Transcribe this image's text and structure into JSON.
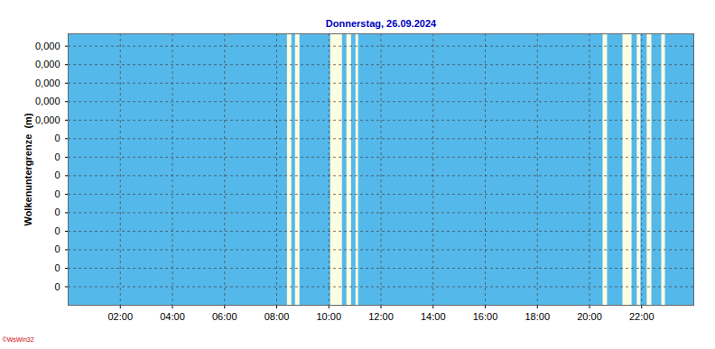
{
  "chart_data": {
    "type": "area",
    "title": "Donnerstag, 26.09.2024",
    "ylabel": "Wolkenuntergrenze  (m)",
    "annotations": [
      "©WsWin32"
    ],
    "x": [
      0,
      8.41,
      8.58,
      8.72,
      8.89,
      10.07,
      10.52,
      10.69,
      10.87,
      11.04,
      11.14,
      20.52,
      20.69,
      21.28,
      21.63,
      21.83,
      21.97,
      22.21,
      22.39,
      22.77,
      22.91,
      24
    ],
    "values": [
      0,
      null,
      0,
      null,
      0,
      null,
      0,
      null,
      0,
      null,
      0,
      null,
      0,
      null,
      0,
      null,
      0,
      null,
      0,
      null,
      0,
      null
    ],
    "color": "#55b8ea",
    "xlim": [
      0,
      24
    ],
    "xticks": [
      {
        "value": 2,
        "label": "02:00"
      },
      {
        "value": 4,
        "label": "04:00"
      },
      {
        "value": 6,
        "label": "06:00"
      },
      {
        "value": 8,
        "label": "08:00"
      },
      {
        "value": 10,
        "label": "10:00"
      },
      {
        "value": 12,
        "label": "12:00"
      },
      {
        "value": 14,
        "label": "14:00"
      },
      {
        "value": 16,
        "label": "16:00"
      },
      {
        "value": 18,
        "label": "18:00"
      },
      {
        "value": 20,
        "label": "20:00"
      },
      {
        "value": 22,
        "label": "22:00"
      }
    ],
    "ylim": [
      0,
      0.00044
    ],
    "yticks": [
      {
        "value": 3e-05,
        "label": "0"
      },
      {
        "value": 6e-05,
        "label": "0"
      },
      {
        "value": 9e-05,
        "label": "0"
      },
      {
        "value": 0.00012,
        "label": "0"
      },
      {
        "value": 0.00015,
        "label": "0"
      },
      {
        "value": 0.00018,
        "label": "0"
      },
      {
        "value": 0.00021,
        "label": "0"
      },
      {
        "value": 0.00024,
        "label": "0"
      },
      {
        "value": 0.00027,
        "label": "0"
      },
      {
        "value": 0.0003,
        "label": "0,000"
      },
      {
        "value": 0.00033,
        "label": "0,000"
      },
      {
        "value": 0.00036,
        "label": "0,000"
      },
      {
        "value": 0.00039,
        "label": "0,000"
      },
      {
        "value": 0.00042,
        "label": "0,000"
      }
    ],
    "grid": true
  }
}
